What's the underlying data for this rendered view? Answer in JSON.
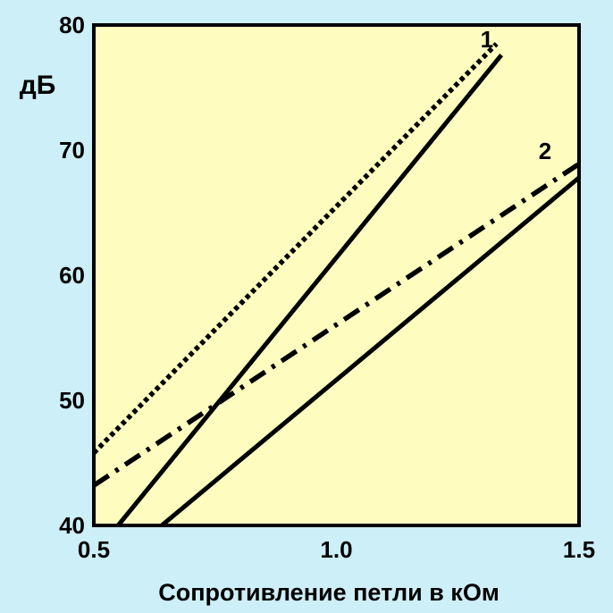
{
  "background_color": "#cdeff7",
  "plot_background_color": "#fffcc0",
  "line_color": "#000000",
  "chart_data": {
    "type": "line",
    "title": "",
    "xlabel": "Сопротивление петли в кОм",
    "ylabel": "дБ",
    "xlim": [
      0.5,
      1.5
    ],
    "ylim": [
      40,
      80
    ],
    "xticks": [
      0.5,
      1.0,
      1.5
    ],
    "xtick_labels": [
      "0.5",
      "1.0",
      "1.5"
    ],
    "yticks": [
      40,
      50,
      60,
      70,
      80
    ],
    "ytick_labels": [
      "40",
      "50",
      "60",
      "70",
      "80"
    ],
    "grid": false,
    "series_labels": [
      {
        "text": "1",
        "x": 1.31,
        "y": 78.2
      },
      {
        "text": "2",
        "x": 1.43,
        "y": 69.3
      }
    ],
    "series": [
      {
        "group": "1",
        "style": "solid",
        "x": [
          0.55,
          1.34
        ],
        "y": [
          40.0,
          77.6
        ]
      },
      {
        "group": "1",
        "style": "dotted",
        "x": [
          0.5,
          1.33
        ],
        "y": [
          45.8,
          78.5
        ]
      },
      {
        "group": "2",
        "style": "solid",
        "x": [
          0.64,
          1.5
        ],
        "y": [
          40.0,
          67.8
        ]
      },
      {
        "group": "2",
        "style": "dashdot",
        "x": [
          0.5,
          1.5
        ],
        "y": [
          43.2,
          68.9
        ]
      }
    ]
  }
}
